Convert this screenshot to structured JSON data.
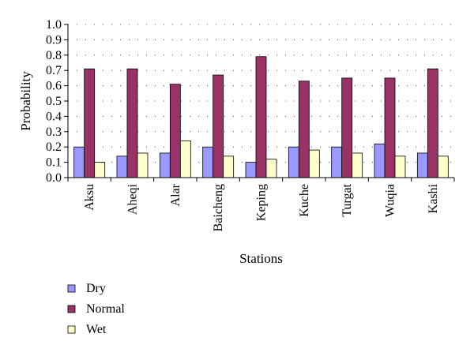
{
  "chart_data": {
    "type": "bar",
    "xlabel": "Stations",
    "ylabel": "Probability",
    "ylim": [
      0,
      1.0
    ],
    "yticks": [
      "0.0",
      "0.1",
      "0.2",
      "0.3",
      "0.4",
      "0.5",
      "0.6",
      "0.7",
      "0.8",
      "0.9",
      "1.0"
    ],
    "grid": "dotted",
    "legend_position": "bottom-left",
    "categories": [
      "Aksu",
      "Aheqi",
      "Alar",
      "Baicheng",
      "Keping",
      "Kuche",
      "Turgat",
      "Wuqia",
      "Kashi"
    ],
    "series": [
      {
        "name": "Dry",
        "color": "#9999ff",
        "values": [
          0.2,
          0.14,
          0.16,
          0.2,
          0.1,
          0.2,
          0.2,
          0.22,
          0.16
        ]
      },
      {
        "name": "Normal",
        "color": "#993366",
        "values": [
          0.71,
          0.71,
          0.61,
          0.67,
          0.79,
          0.63,
          0.65,
          0.65,
          0.71
        ]
      },
      {
        "name": "Wet",
        "color": "#ffffcc",
        "values": [
          0.1,
          0.16,
          0.24,
          0.14,
          0.12,
          0.18,
          0.16,
          0.14,
          0.14
        ]
      }
    ]
  }
}
